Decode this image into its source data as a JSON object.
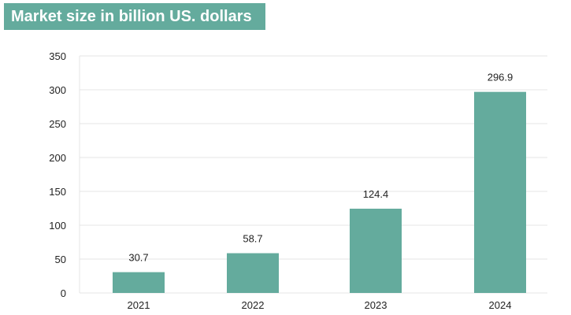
{
  "colors": {
    "accent": "#64ab9d",
    "title_text": "#ffffff",
    "grid": "#e4e4e4",
    "text": "#222222"
  },
  "chart_data": {
    "type": "bar",
    "title": "Market size in billion US. dollars",
    "xlabel": "",
    "ylabel": "",
    "categories": [
      "2021",
      "2022",
      "2023",
      "2024"
    ],
    "values": [
      30.7,
      58.7,
      124.4,
      296.9
    ],
    "data_labels": [
      "30.7",
      "58.7",
      "124.4",
      "296.9"
    ],
    "ylim": [
      0,
      350
    ],
    "yticks": [
      0,
      50,
      100,
      150,
      200,
      250,
      300,
      350
    ],
    "grid": true,
    "legend": "none"
  }
}
